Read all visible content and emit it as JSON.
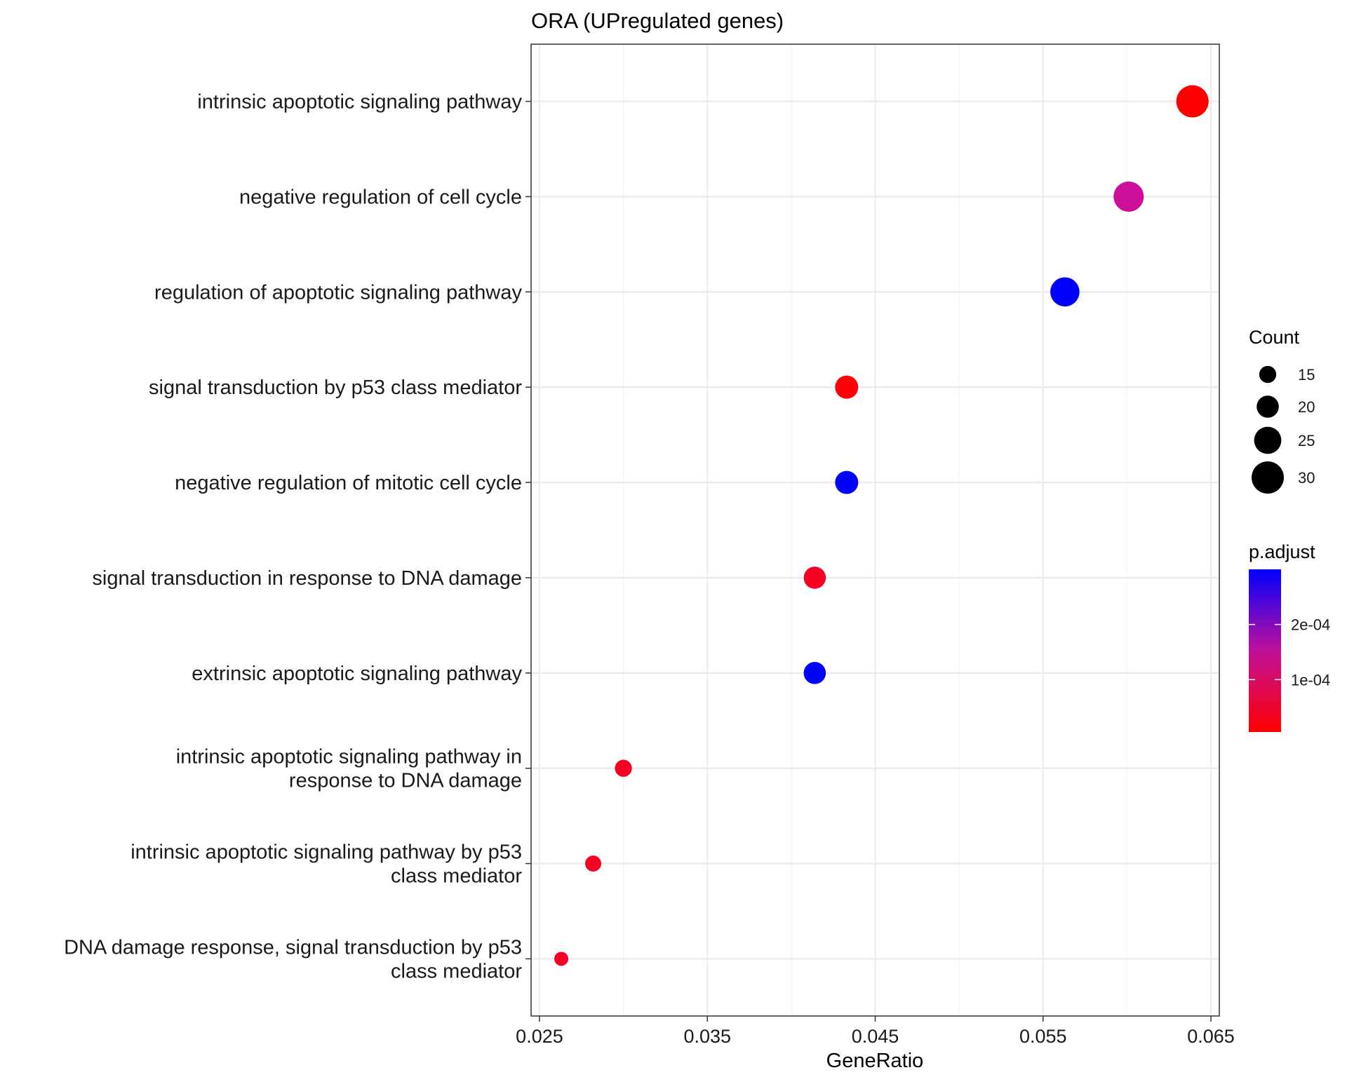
{
  "chart_data": {
    "type": "scatter",
    "title": "ORA (UPregulated genes)",
    "xlabel": "GeneRatio",
    "ylabel": "",
    "xlim": [
      0.0245,
      0.0655
    ],
    "xticks": [
      0.025,
      0.035,
      0.045,
      0.055,
      0.065
    ],
    "xtick_labels": [
      "0.025",
      "0.035",
      "0.045",
      "0.055",
      "0.065"
    ],
    "grid": true,
    "categories": [
      [
        "intrinsic apoptotic signaling pathway"
      ],
      [
        "negative regulation of cell cycle"
      ],
      [
        "regulation of apoptotic signaling pathway"
      ],
      [
        "signal transduction by p53 class mediator"
      ],
      [
        "negative regulation of mitotic cell cycle"
      ],
      [
        "signal transduction in response to DNA damage"
      ],
      [
        "extrinsic apoptotic signaling pathway"
      ],
      [
        "intrinsic apoptotic signaling pathway in",
        "response to DNA damage"
      ],
      [
        "intrinsic apoptotic signaling pathway by p53",
        "class mediator"
      ],
      [
        "DNA damage response, signal transduction by p53",
        "class mediator"
      ]
    ],
    "points": [
      {
        "gene_ratio": 0.0639,
        "count": 30,
        "p_adjust": 5e-06,
        "color": "#ff0000"
      },
      {
        "gene_ratio": 0.0601,
        "count": 28,
        "p_adjust": 0.00021,
        "color": "#cc0f99"
      },
      {
        "gene_ratio": 0.0563,
        "count": 27,
        "p_adjust": 0.0003,
        "color": "#0000ff"
      },
      {
        "gene_ratio": 0.0433,
        "count": 21,
        "p_adjust": 1e-05,
        "color": "#ff0008"
      },
      {
        "gene_ratio": 0.0433,
        "count": 21,
        "p_adjust": 0.0003,
        "color": "#0000ff"
      },
      {
        "gene_ratio": 0.0414,
        "count": 20,
        "p_adjust": 4e-05,
        "color": "#f70023"
      },
      {
        "gene_ratio": 0.0414,
        "count": 20,
        "p_adjust": 0.0003,
        "color": "#0000ff"
      },
      {
        "gene_ratio": 0.03,
        "count": 15,
        "p_adjust": 4e-05,
        "color": "#f70023"
      },
      {
        "gene_ratio": 0.0282,
        "count": 14,
        "p_adjust": 4e-05,
        "color": "#f70023"
      },
      {
        "gene_ratio": 0.0263,
        "count": 12,
        "p_adjust": 4e-05,
        "color": "#f70023"
      }
    ],
    "legend_size": {
      "title": "Count",
      "entries": [
        {
          "label": "15",
          "value": 15
        },
        {
          "label": "20",
          "value": 20
        },
        {
          "label": "25",
          "value": 25
        },
        {
          "label": "30",
          "value": 30
        }
      ]
    },
    "legend_color": {
      "title": "p.adjust",
      "range": [
        5e-06,
        0.0003
      ],
      "low_color": "#ff0000",
      "high_color": "#0000ff",
      "ticks": [
        {
          "label": "1e-04",
          "value": 0.0001
        },
        {
          "label": "2e-04",
          "value": 0.0002
        }
      ]
    },
    "legend_position": "right"
  }
}
